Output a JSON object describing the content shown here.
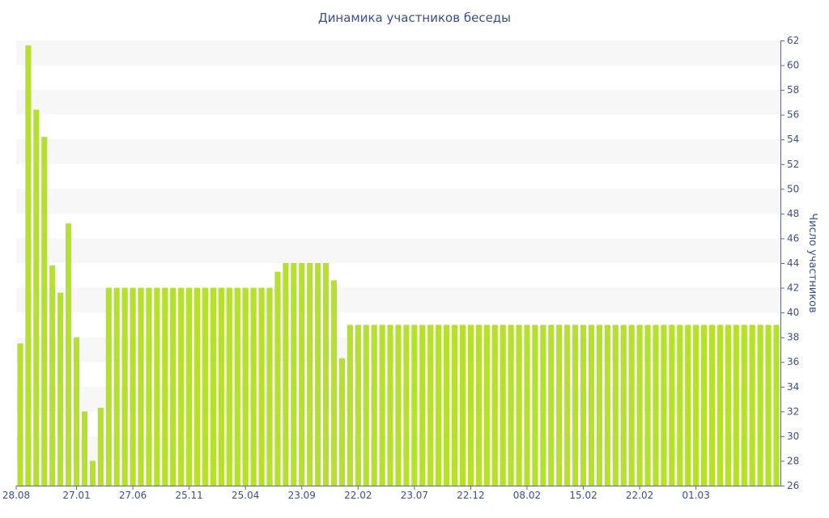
{
  "chart_data": {
    "type": "bar",
    "title": "Динамика участников беседы",
    "xlabel": "",
    "ylabel": "Число участников",
    "ylim": [
      26,
      62
    ],
    "y_ticks": [
      26,
      28,
      30,
      32,
      34,
      36,
      38,
      40,
      42,
      44,
      46,
      48,
      50,
      52,
      54,
      56,
      58,
      60,
      62
    ],
    "y_axis_position": "right",
    "grid": "alternating horizontal bands",
    "x_tick_labels": [
      {
        "label": "28.08",
        "index": 0
      },
      {
        "label": "27.01",
        "index": 7
      },
      {
        "label": "27.06",
        "index": 14
      },
      {
        "label": "25.11",
        "index": 21
      },
      {
        "label": "25.04",
        "index": 28
      },
      {
        "label": "23.09",
        "index": 35
      },
      {
        "label": "22.02",
        "index": 42
      },
      {
        "label": "23.07",
        "index": 49
      },
      {
        "label": "22.12",
        "index": 56
      },
      {
        "label": "08.02",
        "index": 63
      },
      {
        "label": "15.02",
        "index": 70
      },
      {
        "label": "22.02",
        "index": 77
      },
      {
        "label": "01.03",
        "index": 84
      }
    ],
    "series": [
      {
        "color": "#b5e02b",
        "values": [
          37.5,
          61.6,
          56.4,
          54.2,
          43.8,
          41.6,
          47.2,
          38,
          32,
          28,
          32.3,
          42,
          42,
          42,
          42,
          42,
          42,
          42,
          42,
          42,
          42,
          42,
          42,
          42,
          42,
          42,
          42,
          42,
          42,
          42,
          42,
          42,
          43.3,
          44,
          44,
          44,
          44,
          44,
          44,
          42.6,
          36.3,
          39,
          39,
          39,
          39,
          39,
          39,
          39,
          39,
          39,
          39,
          39,
          39,
          39,
          39,
          39,
          39,
          39,
          39,
          39,
          39,
          39,
          39,
          39,
          39,
          39,
          39,
          39,
          39,
          39,
          39,
          39,
          39,
          39,
          39,
          39,
          39,
          39,
          39,
          39,
          39,
          39,
          39,
          39,
          39,
          39,
          39,
          39,
          39,
          39,
          39,
          39,
          39,
          39,
          39
        ]
      }
    ]
  }
}
